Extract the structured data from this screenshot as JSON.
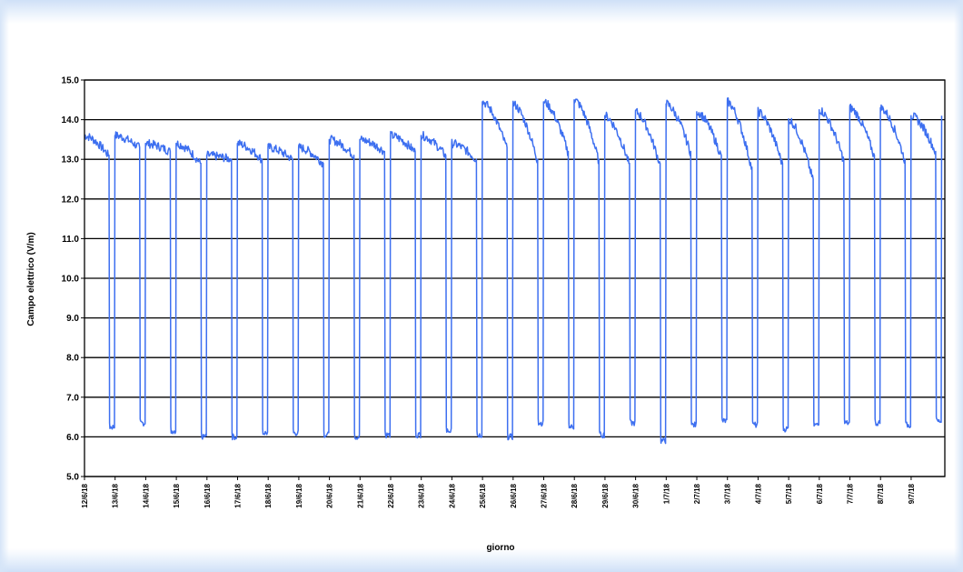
{
  "chart_data": {
    "type": "line",
    "title": "",
    "xlabel": "giorno",
    "ylabel": "Campo elettrico (V/m)",
    "ylim": [
      5.0,
      15.0
    ],
    "yticks": [
      "5.0",
      "6.0",
      "7.0",
      "8.0",
      "9.0",
      "10.0",
      "11.0",
      "12.0",
      "13.0",
      "14.0",
      "15.0"
    ],
    "xticks": [
      "12/6/18",
      "13/6/18",
      "14/6/18",
      "15/6/18",
      "16/6/18",
      "17/6/18",
      "18/6/18",
      "19/6/18",
      "20/6/18",
      "21/6/18",
      "22/6/18",
      "23/6/18",
      "24/6/18",
      "25/6/18",
      "26/6/18",
      "27/6/18",
      "28/6/18",
      "29/6/18",
      "30/6/18",
      "1/7/18",
      "2/7/18",
      "3/7/18",
      "4/7/18",
      "5/7/18",
      "6/7/18",
      "7/7/18",
      "8/7/18",
      "9/7/18"
    ],
    "xlim": [
      0,
      28.1
    ],
    "grid": "horizontal",
    "legend": "none",
    "color": "#3d6ff0",
    "days": [
      {
        "low": 6.25,
        "high_start": 13.6,
        "high_end": 13.1
      },
      {
        "low": 6.35,
        "high_start": 13.6,
        "high_end": 13.3
      },
      {
        "low": 6.15,
        "high_start": 13.4,
        "high_end": 13.2
      },
      {
        "low": 6.0,
        "high_start": 13.4,
        "high_end": 12.9
      },
      {
        "low": 6.0,
        "high_start": 13.1,
        "high_end": 13.0
      },
      {
        "low": 6.1,
        "high_start": 13.4,
        "high_end": 13.0
      },
      {
        "low": 6.1,
        "high_start": 13.3,
        "high_end": 13.0
      },
      {
        "low": 6.05,
        "high_start": 13.3,
        "high_end": 12.9
      },
      {
        "low": 6.0,
        "high_start": 13.5,
        "high_end": 13.1
      },
      {
        "low": 6.05,
        "high_start": 13.5,
        "high_end": 13.2
      },
      {
        "low": 6.05,
        "high_start": 13.6,
        "high_end": 13.2
      },
      {
        "low": 6.15,
        "high_start": 13.6,
        "high_end": 13.1
      },
      {
        "low": 6.05,
        "high_start": 13.4,
        "high_end": 13.0
      },
      {
        "low": 6.0,
        "high_start": 14.45,
        "high_end": 13.3
      },
      {
        "low": 6.35,
        "high_start": 14.4,
        "high_end": 13.0
      },
      {
        "low": 6.25,
        "high_start": 14.45,
        "high_end": 13.2
      },
      {
        "low": 6.05,
        "high_start": 14.5,
        "high_end": 13.0
      },
      {
        "low": 6.35,
        "high_start": 14.1,
        "high_end": 12.9
      },
      {
        "low": 5.9,
        "high_start": 14.2,
        "high_end": 12.9
      },
      {
        "low": 6.3,
        "high_start": 14.4,
        "high_end": 13.2
      },
      {
        "low": 6.4,
        "high_start": 14.2,
        "high_end": 13.1
      },
      {
        "low": 6.3,
        "high_start": 14.45,
        "high_end": 12.8
      },
      {
        "low": 6.2,
        "high_start": 14.2,
        "high_end": 12.9
      },
      {
        "low": 6.3,
        "high_start": 14.0,
        "high_end": 12.5
      },
      {
        "low": 6.35,
        "high_start": 14.25,
        "high_end": 13.0
      },
      {
        "low": 6.35,
        "high_start": 14.3,
        "high_end": 13.1
      },
      {
        "low": 6.3,
        "high_start": 14.3,
        "high_end": 13.0
      },
      {
        "low": 6.4,
        "high_start": 14.1,
        "high_end": 13.2
      }
    ]
  }
}
